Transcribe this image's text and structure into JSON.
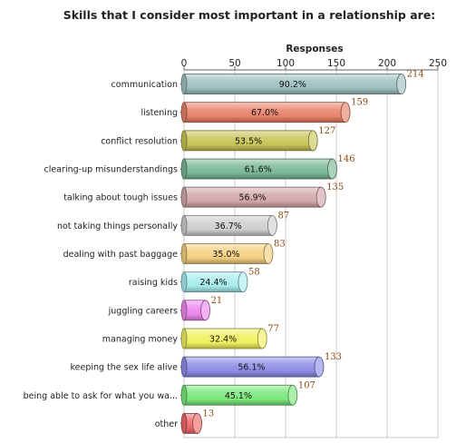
{
  "chart_data": {
    "type": "bar",
    "orientation": "horizontal",
    "title": "Skills that I consider most important in a relationship are:",
    "xlabel": "Responses",
    "xlim": [
      0,
      250
    ],
    "ticks": [
      0,
      50,
      100,
      150,
      200,
      250
    ],
    "grid": true,
    "categories": [
      "communication",
      "listening",
      "conflict resolution",
      "clearing-up misunderstandings",
      "talking about tough issues",
      "not taking things personally",
      "dealing with past baggage",
      "raising kids",
      "juggling careers",
      "managing money",
      "keeping the sex life alive",
      "being able to ask for what you wa...",
      "other"
    ],
    "values": [
      214,
      159,
      127,
      146,
      135,
      87,
      83,
      58,
      21,
      77,
      133,
      107,
      13
    ],
    "percent_labels": [
      "90.2%",
      "67.0%",
      "53.5%",
      "61.6%",
      "56.9%",
      "36.7%",
      "35.0%",
      "24.4%",
      "",
      "32.4%",
      "56.1%",
      "45.1%",
      ""
    ],
    "colors": [
      "#9fc0c0",
      "#e8826a",
      "#c8c458",
      "#7ab896",
      "#d4a8aa",
      "#cfcfcf",
      "#f4d080",
      "#a8ecec",
      "#ee88ee",
      "#f0f060",
      "#8e8ee8",
      "#7ce87c",
      "#ee6a6a"
    ]
  }
}
